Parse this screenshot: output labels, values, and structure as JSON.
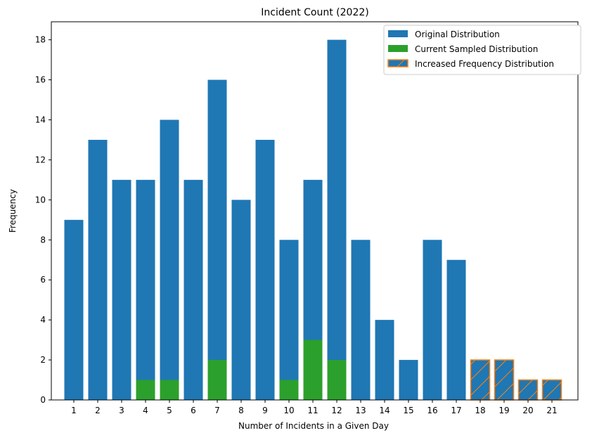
{
  "chart_data": {
    "type": "bar",
    "title": "Incident Count (2022)",
    "xlabel": "Number of Incidents in a Given Day",
    "ylabel": "Frequency",
    "ylim": [
      0,
      18.9
    ],
    "yticks": [
      0,
      2,
      4,
      6,
      8,
      10,
      12,
      14,
      16,
      18
    ],
    "categories": [
      "1",
      "2",
      "3",
      "4",
      "5",
      "6",
      "7",
      "8",
      "9",
      "10",
      "11",
      "12",
      "13",
      "14",
      "15",
      "16",
      "17",
      "18",
      "19",
      "20",
      "21"
    ],
    "series": [
      {
        "name": "Original Distribution",
        "color": "#1f77b4",
        "values": [
          9,
          13,
          11,
          11,
          14,
          11,
          16,
          10,
          13,
          8,
          11,
          18,
          8,
          4,
          2,
          8,
          7,
          0,
          0,
          0,
          0
        ]
      },
      {
        "name": "Current Sampled Distribution",
        "color": "#2ca02c",
        "values": [
          0,
          0,
          0,
          1,
          1,
          0,
          2,
          0,
          0,
          1,
          3,
          2,
          0,
          0,
          0,
          0,
          0,
          0,
          0,
          0,
          0
        ]
      },
      {
        "name": "Increased Frequency Distribution",
        "color": "#1f77b4",
        "edgecolor": "#ff7f0e",
        "hatch": "/",
        "values": [
          0,
          0,
          0,
          0,
          0,
          0,
          0,
          0,
          0,
          0,
          0,
          0,
          0,
          0,
          0,
          0,
          0,
          2,
          2,
          1,
          1
        ]
      }
    ],
    "legend": {
      "placement": "top-right"
    },
    "grid": false
  }
}
